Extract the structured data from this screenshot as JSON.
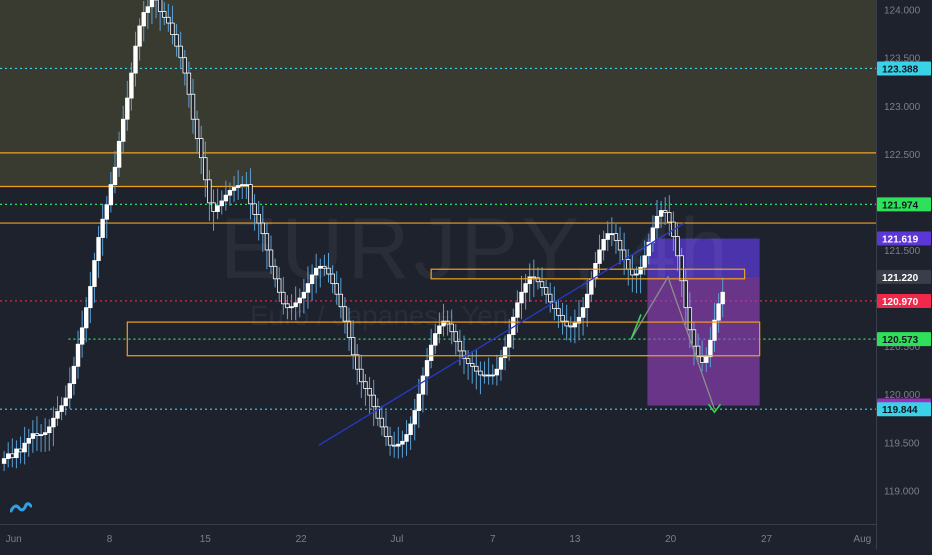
{
  "chart_data": {
    "type": "candlestick",
    "symbol_watermark": "EURJPY, 4h",
    "watermark_sub": "Euro / Japanese Yen",
    "colors": {
      "background": "#1e222d",
      "resistance_zone": "#3a3b30",
      "candle_up": "#ffffff",
      "candle_down": "#ffffff",
      "wick": "#5a9fd4",
      "zone_line": "#f0a01e",
      "trendline": "#2838c8",
      "short_zone": "#9b43c6",
      "arrow": "#5fa060",
      "cyan": "#3ad2e6",
      "green": "#2ee05a",
      "red": "#f0284a",
      "axis_text": "#7b7f8a"
    },
    "y_axis": {
      "ylim": [
        118.65,
        124.1
      ],
      "ticks": [
        "124.000",
        "123.500",
        "123.000",
        "122.500",
        "122.000",
        "121.500",
        "121.000",
        "120.500",
        "120.000",
        "119.500",
        "119.000"
      ],
      "tick_values": [
        124.0,
        123.5,
        123.0,
        122.5,
        122.0,
        121.5,
        121.0,
        120.5,
        120.0,
        119.5,
        119.0
      ]
    },
    "x_axis": {
      "ticks": [
        "Jun",
        "8",
        "15",
        "22",
        "Jul",
        "7",
        "13",
        "20",
        "27",
        "Aug"
      ],
      "tick_days": [
        1,
        8,
        15,
        22,
        29,
        36,
        42,
        49,
        56,
        63
      ],
      "xlim": [
        0,
        64
      ]
    },
    "price_labels": [
      {
        "text": "123.388",
        "value": 123.388,
        "color": "#3ad2e6",
        "text_color": "#131722"
      },
      {
        "text": "121.974",
        "value": 121.974,
        "color": "#2ee05a",
        "text_color": "#131722"
      },
      {
        "text": "121.619",
        "value": 121.619,
        "color": "#5b37d6",
        "text_color": "#ffffff"
      },
      {
        "text": "121.220",
        "value": 121.22,
        "color": "#3a3e4a",
        "text_color": "#ffffff"
      },
      {
        "text": "120.970",
        "value": 120.97,
        "color": "#f0284a",
        "text_color": "#ffffff"
      },
      {
        "text": "120.573",
        "value": 120.573,
        "color": "#2ee05a",
        "text_color": "#131722"
      },
      {
        "text": "119.882",
        "value": 119.882,
        "color": "#9b2fc0",
        "text_color": "#ffffff"
      },
      {
        "text": "119.844",
        "value": 119.844,
        "color": "#3ad2e6",
        "text_color": "#131722"
      }
    ],
    "horizontal_lines": [
      {
        "value": 123.388,
        "style": "dotted",
        "color": "#3ad2e6"
      },
      {
        "value": 122.51,
        "style": "solid",
        "color": "#f0a01e"
      },
      {
        "value": 122.16,
        "style": "solid",
        "color": "#f0a01e"
      },
      {
        "value": 121.974,
        "style": "dotted",
        "color": "#2ee05a"
      },
      {
        "value": 121.78,
        "style": "solid",
        "color": "#f0a01e"
      },
      {
        "value": 120.97,
        "style": "dotted",
        "color": "#f0284a"
      },
      {
        "value": 120.573,
        "style": "dotted",
        "color": "#2ee05a",
        "x_from": 5
      },
      {
        "value": 119.844,
        "style": "dotted",
        "color": "#3ad2e6"
      }
    ],
    "resistance_area": {
      "from": 124.1,
      "to": 122.16
    },
    "zones": [
      {
        "x0": 9.3,
        "x1": 55.5,
        "y0": 120.75,
        "y1": 120.4,
        "color": "#f0a01e"
      },
      {
        "x0": 31.5,
        "x1": 54.4,
        "y0": 121.3,
        "y1": 121.2,
        "color": "#f0a01e"
      }
    ],
    "trendline": {
      "x0": 23.3,
      "y0": 119.47,
      "x1": 50,
      "y1": 121.78
    },
    "short_box": {
      "x0": 47.3,
      "x1": 55.5,
      "top": 121.619,
      "mid": 121.22,
      "bottom": 119.882
    },
    "arrow_path": [
      [
        46.1,
        120.57
      ],
      [
        48.8,
        121.22
      ],
      [
        52.2,
        119.844
      ]
    ],
    "candles": {
      "x_start": 0.3,
      "x_step": 0.3,
      "closes": [
        119.33,
        119.38,
        119.34,
        119.43,
        119.4,
        119.49,
        119.54,
        119.59,
        119.57,
        119.58,
        119.6,
        119.66,
        119.75,
        119.82,
        119.88,
        119.96,
        120.11,
        120.29,
        120.52,
        120.69,
        120.9,
        121.12,
        121.39,
        121.63,
        121.82,
        121.97,
        122.18,
        122.36,
        122.63,
        122.86,
        123.08,
        123.34,
        123.62,
        123.83,
        123.97,
        124.03,
        124.1,
        124.14,
        123.98,
        123.92,
        123.86,
        123.74,
        123.62,
        123.5,
        123.34,
        123.12,
        122.86,
        122.66,
        122.46,
        122.23,
        121.99,
        121.9,
        121.96,
        122.01,
        122.07,
        122.12,
        122.15,
        122.17,
        122.18,
        122.18,
        121.98,
        121.87,
        121.78,
        121.67,
        121.5,
        121.33,
        121.2,
        121.06,
        120.94,
        120.9,
        120.91,
        120.95,
        121.0,
        121.06,
        121.15,
        121.24,
        121.31,
        121.33,
        121.31,
        121.25,
        121.15,
        121.04,
        120.91,
        120.76,
        120.59,
        120.41,
        120.26,
        120.13,
        120.06,
        119.99,
        119.87,
        119.75,
        119.66,
        119.56,
        119.47,
        119.46,
        119.48,
        119.51,
        119.58,
        119.69,
        119.83,
        120.0,
        120.19,
        120.35,
        120.51,
        120.63,
        120.71,
        120.76,
        120.73,
        120.65,
        120.55,
        120.45,
        120.37,
        120.32,
        120.29,
        120.24,
        120.2,
        120.19,
        120.2,
        120.2,
        120.26,
        120.38,
        120.49,
        120.62,
        120.8,
        120.95,
        121.06,
        121.15,
        121.22,
        121.21,
        121.17,
        121.11,
        121.04,
        120.96,
        120.89,
        120.82,
        120.76,
        120.71,
        120.7,
        120.74,
        120.8,
        120.9,
        121.04,
        121.2,
        121.36,
        121.5,
        121.61,
        121.67,
        121.67,
        121.6,
        121.5,
        121.4,
        121.3,
        121.24,
        121.25,
        121.32,
        121.44,
        121.58,
        121.73,
        121.85,
        121.91,
        121.89,
        121.79,
        121.64,
        121.44,
        121.18,
        120.9,
        120.67,
        120.5,
        120.39,
        120.33,
        120.39,
        120.56,
        120.77,
        120.94,
        121.06
      ]
    }
  }
}
